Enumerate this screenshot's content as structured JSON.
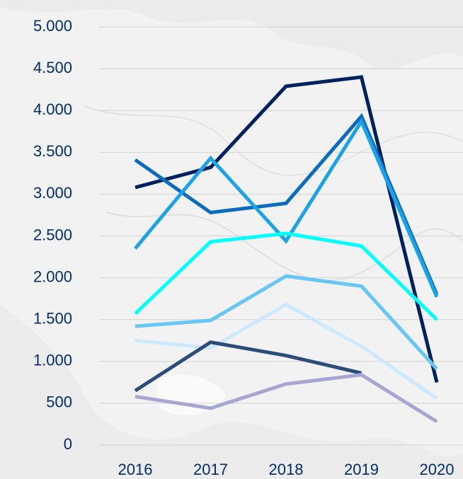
{
  "chart_data": {
    "type": "line",
    "categories": [
      "2016",
      "2017",
      "2018",
      "2019",
      "2020"
    ],
    "series": [
      {
        "color": "#002060",
        "values": [
          3080,
          3320,
          4290,
          4400,
          750
        ]
      },
      {
        "color": "#0a6cbf",
        "values": [
          3410,
          2780,
          2890,
          3930,
          1800
        ]
      },
      {
        "color": "#1aa3e6",
        "values": [
          2350,
          3430,
          2440,
          3870,
          1770
        ]
      },
      {
        "color": "#00ffff",
        "values": [
          1570,
          2430,
          2530,
          2380,
          1500
        ]
      },
      {
        "color": "#66c6f6",
        "values": [
          1420,
          1490,
          2020,
          1900,
          910
        ]
      },
      {
        "color": "#cce9ff",
        "values": [
          1250,
          1160,
          1680,
          1180,
          560
        ]
      },
      {
        "color": "#2c4d7c",
        "values": [
          650,
          1230,
          1070,
          860,
          null
        ]
      },
      {
        "color": "#a6a6d2",
        "values": [
          580,
          440,
          730,
          840,
          280
        ]
      }
    ],
    "ylim": [
      0,
      5000
    ],
    "yticks": [
      0,
      500,
      {
        "value": 1000,
        "label": "1.000"
      },
      {
        "value": 1500,
        "label": "1.500"
      },
      {
        "value": 2000,
        "label": "2.000"
      },
      {
        "value": 2500,
        "label": "2.500"
      },
      {
        "value": 3000,
        "label": "3.000"
      },
      {
        "value": 3500,
        "label": "3.500"
      },
      {
        "value": 4000,
        "label": "4.000"
      },
      {
        "value": 4500,
        "label": "4.500"
      },
      {
        "value": 5000,
        "label": "5.000"
      }
    ],
    "grid": true
  }
}
